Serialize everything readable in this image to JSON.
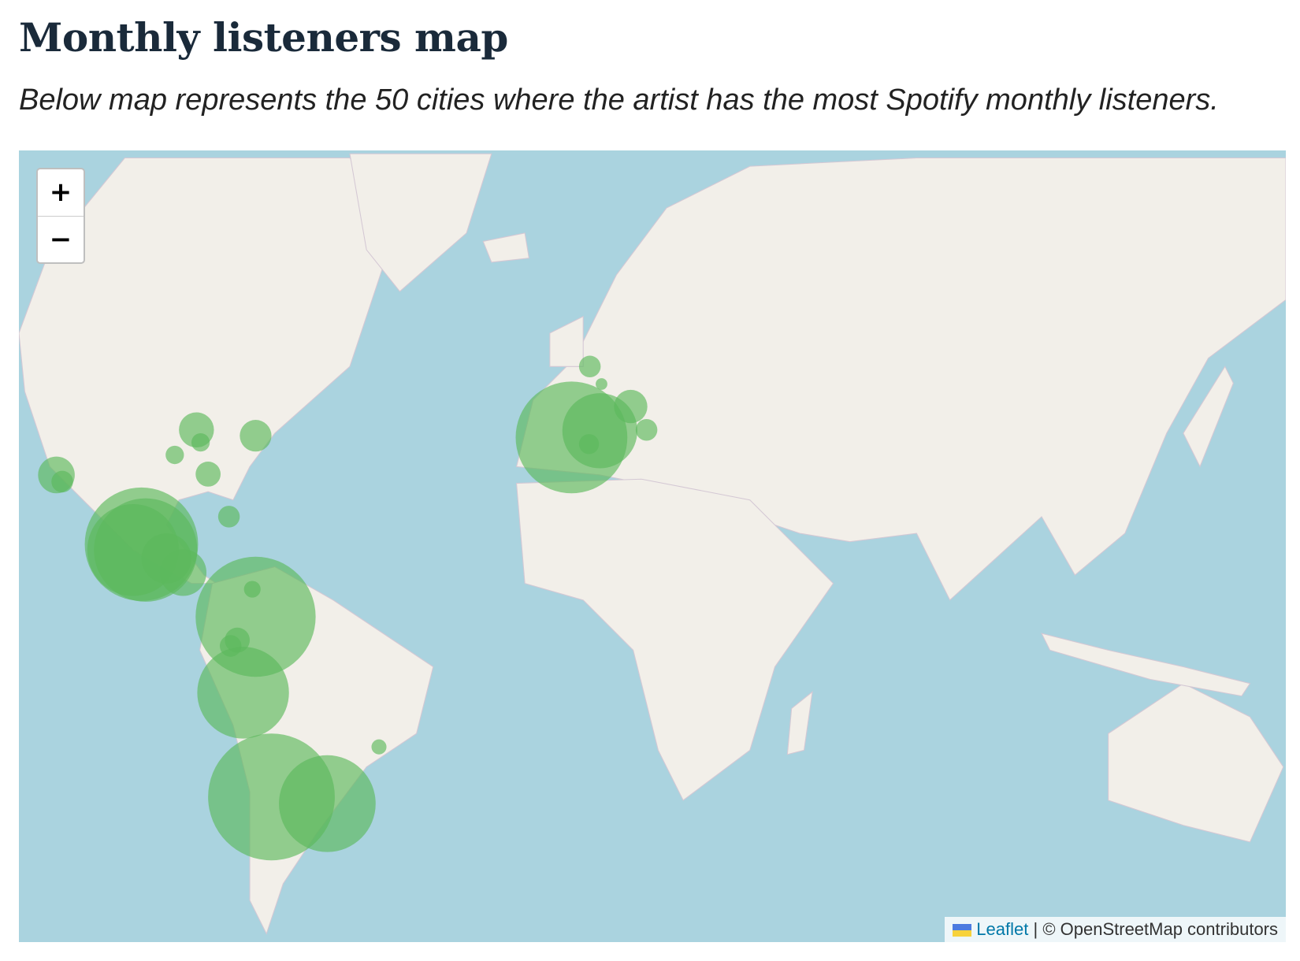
{
  "title": "Monthly listeners map",
  "subtitle": "Below map represents the 50 cities where the artist has the most Spotify monthly listeners.",
  "map": {
    "zoom_in": "+",
    "zoom_out": "−",
    "attribution_link": "Leaflet",
    "attribution_sep": "|",
    "attribution_text": "© OpenStreetMap contributors",
    "colors": {
      "water": "#aad3df",
      "land": "#f2efe9",
      "bubble": "#5cb85c"
    },
    "flag_icon": "ukraine-flag-icon"
  }
}
